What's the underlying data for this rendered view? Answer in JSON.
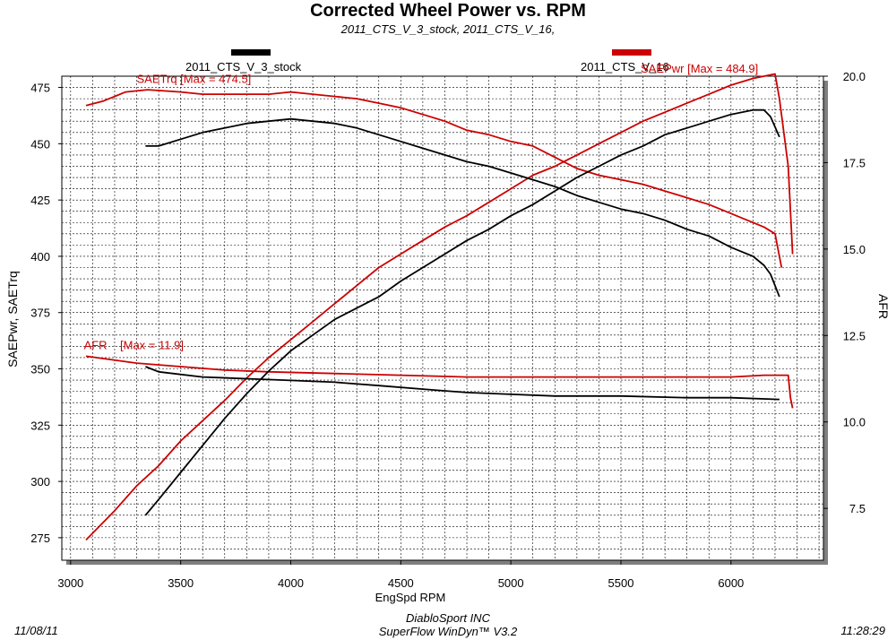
{
  "chart_data": {
    "type": "line",
    "title": "Corrected Wheel Power vs. RPM",
    "subtitle": "2011_CTS_V_3_stock, 2011_CTS_V_16,",
    "xlabel": "EngSpd RPM",
    "ylabel_left": "SAEPwr, SAETrq",
    "ylabel_right": "AFR",
    "xlim": [
      2960,
      6420
    ],
    "ylim_left": [
      265,
      480
    ],
    "ylim_right": [
      6.0,
      20.0
    ],
    "x_ticks": [
      3000,
      3500,
      4000,
      4500,
      5000,
      5500,
      6000
    ],
    "y_ticks_left": [
      275,
      300,
      325,
      350,
      375,
      400,
      425,
      450,
      475
    ],
    "y_ticks_right": [
      "7.5",
      "10.0",
      "12.5",
      "15.0",
      "17.5",
      "20.0"
    ],
    "grid": true,
    "legend": [
      {
        "name": "2011_CTS_V_3_stock",
        "color": "#000000"
      },
      {
        "name": "2011_CTS_V_16",
        "color": "#cc0000"
      }
    ],
    "annotations": [
      {
        "text": "SAETrq [Max = 474.5]",
        "x": 3300,
        "y": 477,
        "axis": "left",
        "color": "#cc0000"
      },
      {
        "text": "SAEPwr [Max = 484.9]",
        "x": 5590,
        "y": 481.5,
        "axis": "left",
        "color": "#cc0000"
      },
      {
        "text": "AFR    [Max = 11.9]",
        "x": 3060,
        "y": 12.1,
        "axis": "right",
        "color": "#cc0000"
      }
    ],
    "series": [
      {
        "run": "2011_CTS_V_16",
        "quantity": "SAEPwr",
        "axis": "left",
        "color": "#cc0000",
        "x": [
          3070,
          3200,
          3300,
          3400,
          3500,
          3600,
          3700,
          3800,
          3900,
          4000,
          4100,
          4200,
          4300,
          4400,
          4500,
          4600,
          4700,
          4800,
          4900,
          5000,
          5100,
          5200,
          5300,
          5400,
          5500,
          5600,
          5700,
          5800,
          5900,
          6000,
          6100,
          6200,
          6220,
          6260,
          6280
        ],
        "y": [
          274,
          287,
          298,
          307,
          318,
          327,
          336,
          346,
          355,
          363,
          371,
          379,
          387,
          395,
          401,
          407,
          413,
          418,
          424,
          430,
          436,
          440,
          445,
          450,
          455,
          460,
          464,
          468,
          472,
          476,
          479,
          481,
          470,
          440,
          401
        ]
      },
      {
        "run": "2011_CTS_V_16",
        "quantity": "SAETrq",
        "axis": "left",
        "color": "#cc0000",
        "x": [
          3070,
          3150,
          3250,
          3350,
          3500,
          3600,
          3700,
          3800,
          3900,
          4000,
          4100,
          4200,
          4300,
          4400,
          4500,
          4600,
          4700,
          4800,
          4900,
          5000,
          5100,
          5200,
          5300,
          5400,
          5500,
          5600,
          5700,
          5800,
          5900,
          6000,
          6100,
          6150,
          6200,
          6230
        ],
        "y": [
          467,
          469,
          473,
          474,
          473,
          472,
          472,
          472,
          472,
          473,
          472,
          471,
          470,
          468,
          466,
          463,
          460,
          456,
          454,
          451,
          449,
          444,
          439,
          436,
          434,
          432,
          429,
          426,
          423,
          419,
          415,
          413,
          410,
          395
        ]
      },
      {
        "run": "2011_CTS_V_16",
        "quantity": "AFR",
        "axis": "right",
        "color": "#cc0000",
        "x": [
          3070,
          3300,
          3500,
          3700,
          3900,
          4200,
          4500,
          4800,
          5000,
          5500,
          6000,
          6150,
          6200,
          6240,
          6260,
          6270,
          6280
        ],
        "y": [
          11.9,
          11.7,
          11.6,
          11.5,
          11.45,
          11.4,
          11.35,
          11.3,
          11.3,
          11.3,
          11.3,
          11.35,
          11.35,
          11.35,
          11.35,
          10.7,
          10.4
        ]
      },
      {
        "run": "2011_CTS_V_3_stock",
        "quantity": "SAEPwr",
        "axis": "left",
        "color": "#000000",
        "x": [
          3340,
          3400,
          3500,
          3600,
          3700,
          3800,
          3900,
          4000,
          4100,
          4200,
          4300,
          4400,
          4500,
          4600,
          4700,
          4800,
          4900,
          5000,
          5100,
          5200,
          5300,
          5400,
          5500,
          5600,
          5700,
          5800,
          5900,
          6000,
          6100,
          6150,
          6180,
          6220
        ],
        "y": [
          285,
          292,
          304,
          316,
          328,
          339,
          349,
          358,
          365,
          372,
          377,
          382,
          389,
          395,
          401,
          407,
          412,
          418,
          423,
          429,
          435,
          440,
          445,
          449,
          454,
          457,
          460,
          463,
          465,
          465,
          462,
          453
        ]
      },
      {
        "run": "2011_CTS_V_3_stock",
        "quantity": "SAETrq",
        "axis": "left",
        "color": "#000000",
        "x": [
          3340,
          3400,
          3500,
          3600,
          3700,
          3800,
          3900,
          4000,
          4100,
          4200,
          4300,
          4400,
          4500,
          4600,
          4700,
          4800,
          4900,
          5000,
          5100,
          5200,
          5300,
          5400,
          5500,
          5600,
          5700,
          5800,
          5900,
          6000,
          6100,
          6150,
          6180,
          6220
        ],
        "y": [
          449,
          449,
          452,
          455,
          457,
          459,
          460,
          461,
          460,
          459,
          457,
          454,
          451,
          448,
          445,
          442,
          440,
          437,
          434,
          431,
          427,
          424,
          421,
          419,
          416,
          412,
          409,
          404,
          400,
          396,
          392,
          382
        ]
      },
      {
        "run": "2011_CTS_V_3_stock",
        "quantity": "AFR",
        "axis": "right",
        "color": "#000000",
        "x": [
          3340,
          3400,
          3600,
          3800,
          4000,
          4200,
          4400,
          4600,
          4800,
          5000,
          5200,
          5500,
          5800,
          6000,
          6220
        ],
        "y": [
          11.6,
          11.45,
          11.3,
          11.25,
          11.2,
          11.15,
          11.05,
          10.95,
          10.85,
          10.8,
          10.75,
          10.75,
          10.7,
          10.7,
          10.65
        ]
      }
    ]
  },
  "footer": {
    "date": "11/08/11",
    "time": "11:28:29",
    "company": "DiabloSport INC",
    "software": "SuperFlow WinDyn™ V3.2"
  }
}
